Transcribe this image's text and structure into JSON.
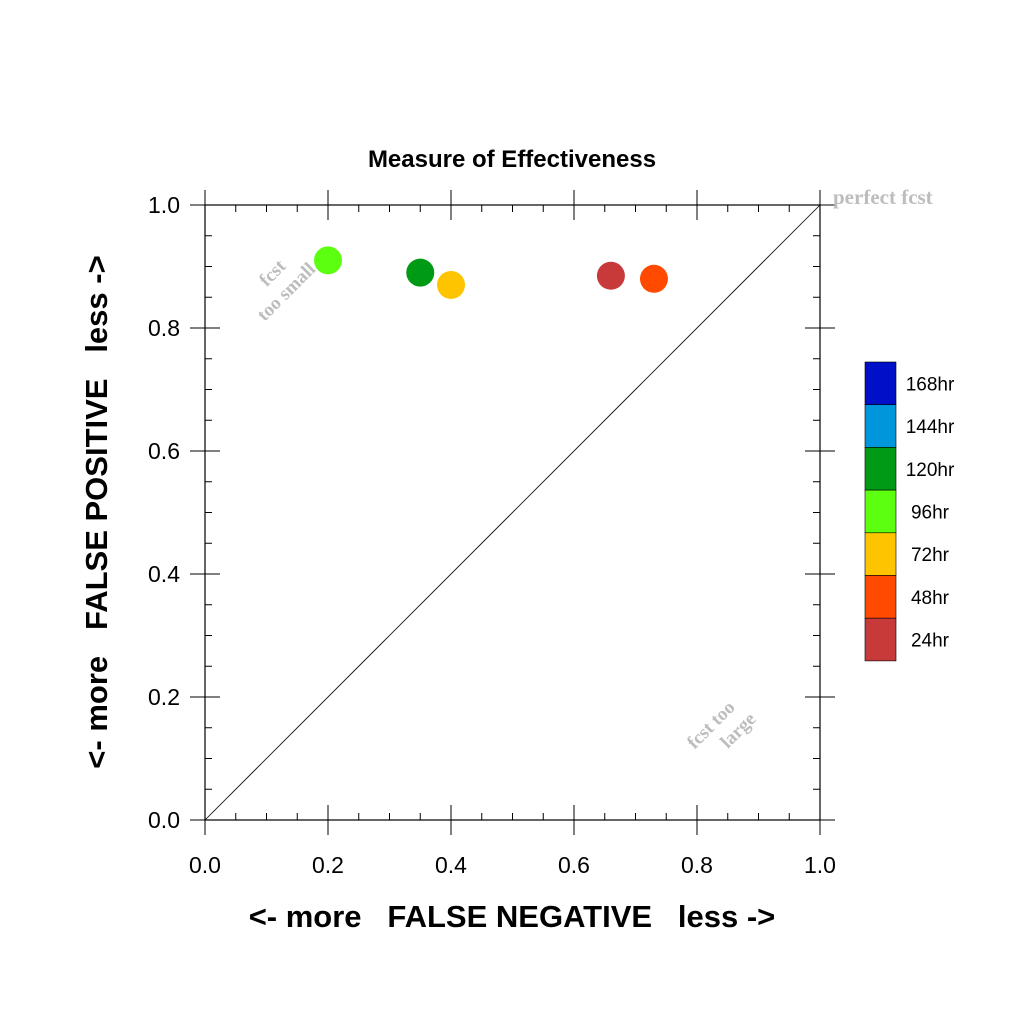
{
  "chart_data": {
    "type": "scatter",
    "title": "Measure of Effectiveness",
    "xlabel": "<- more   FALSE NEGATIVE   less ->",
    "ylabel": "<- more   FALSE POSITIVE   less ->",
    "xlim": [
      0,
      1
    ],
    "ylim": [
      0,
      1
    ],
    "x_ticks": [
      "0.0",
      "0.2",
      "0.4",
      "0.6",
      "0.8",
      "1.0"
    ],
    "y_ticks": [
      "0.0",
      "0.2",
      "0.4",
      "0.6",
      "0.8",
      "1.0"
    ],
    "x_tick_values": [
      0,
      0.2,
      0.4,
      0.6,
      0.8,
      1.0
    ],
    "y_tick_values": [
      0,
      0.2,
      0.4,
      0.6,
      0.8,
      1.0
    ],
    "grid": false,
    "reference_line": {
      "from": [
        0,
        0
      ],
      "to": [
        1,
        1
      ]
    },
    "legend_position": "right",
    "legend": [
      {
        "label": "168hr",
        "color": "#0010c8"
      },
      {
        "label": "144hr",
        "color": "#0096dc"
      },
      {
        "label": "120hr",
        "color": "#009a14"
      },
      {
        "label": "96hr",
        "color": "#5cff10"
      },
      {
        "label": "72hr",
        "color": "#ffc400"
      },
      {
        "label": "48hr",
        "color": "#ff4a00"
      },
      {
        "label": "24hr",
        "color": "#c83a3a"
      }
    ],
    "points": [
      {
        "series": "96hr",
        "x": 0.2,
        "y": 0.91,
        "color": "#5cff10"
      },
      {
        "series": "120hr",
        "x": 0.35,
        "y": 0.89,
        "color": "#009a14"
      },
      {
        "series": "72hr",
        "x": 0.4,
        "y": 0.87,
        "color": "#ffc400"
      },
      {
        "series": "24hr",
        "x": 0.66,
        "y": 0.885,
        "color": "#c83a3a"
      },
      {
        "series": "48hr",
        "x": 0.73,
        "y": 0.88,
        "color": "#ff4a00"
      }
    ],
    "annotations": {
      "perfect": "perfect fcst",
      "too_small_1": "fcst",
      "too_small_2": "too small",
      "too_large_1": "fcst too",
      "too_large_2": "large"
    }
  }
}
